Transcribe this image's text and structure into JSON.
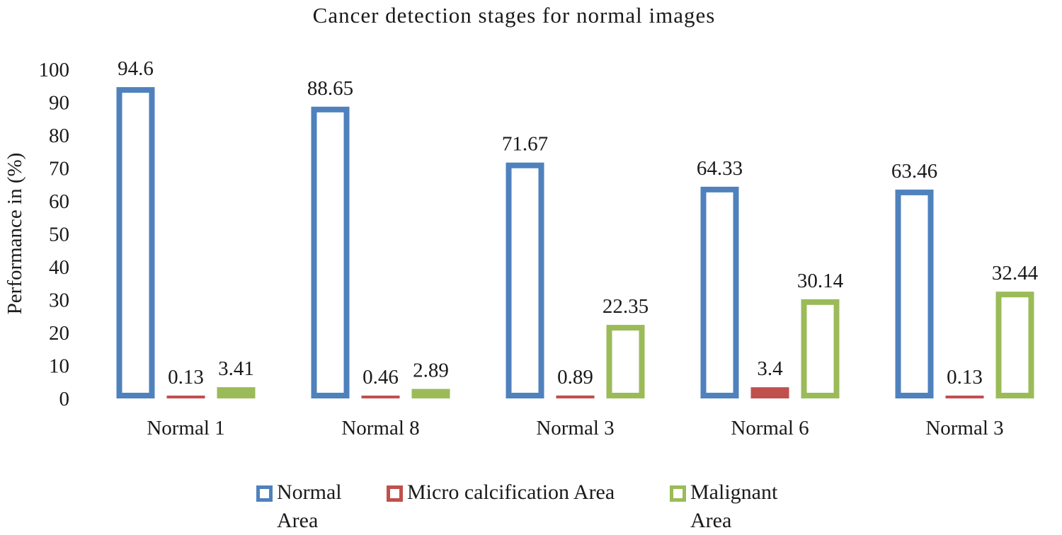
{
  "chart_data": {
    "type": "bar",
    "title": "Cancer detection stages for normal images",
    "xlabel": "",
    "ylabel": "Performance in (%)",
    "ylim": [
      0,
      100
    ],
    "yticks": [
      0,
      10,
      20,
      30,
      40,
      50,
      60,
      70,
      80,
      90,
      100
    ],
    "grid": false,
    "legend_position": "bottom",
    "categories": [
      "Normal 1",
      "Normal 8",
      "Normal 3",
      "Normal 6",
      "Normal 3"
    ],
    "series": [
      {
        "name": "Normal Area",
        "color": "#4f81bd",
        "values": [
          94.6,
          88.65,
          71.67,
          64.33,
          63.46
        ],
        "labels": [
          "94.6",
          "88.65",
          "71.67",
          "64.33",
          "63.46"
        ]
      },
      {
        "name": "Micro calcification Area",
        "color": "#c0504d",
        "values": [
          0.13,
          0.46,
          0.89,
          3.4,
          0.13
        ],
        "labels": [
          "0.13",
          "0.46",
          "0.89",
          "3.4",
          "0.13"
        ]
      },
      {
        "name": "Malignant Area",
        "color": "#9bbb59",
        "values": [
          3.41,
          2.89,
          22.35,
          30.14,
          32.44
        ],
        "labels": [
          "3.41",
          "2.89",
          "22.35",
          "30.14",
          "32.44"
        ]
      }
    ]
  },
  "legend": {
    "items": [
      {
        "label": "Normal\nArea",
        "color": "#4f81bd"
      },
      {
        "label": "Micro calcification Area",
        "color": "#c0504d"
      },
      {
        "label": "Malignant\nArea",
        "color": "#9bbb59"
      }
    ]
  }
}
